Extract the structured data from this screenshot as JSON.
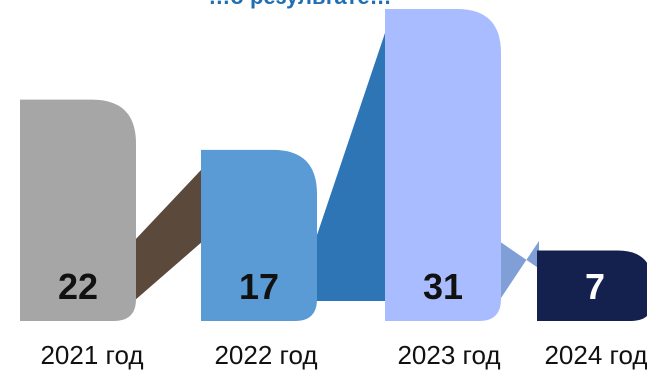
{
  "chart_data": {
    "type": "bar",
    "title": "…о результате…",
    "categories": [
      "2021 год",
      "2022 год",
      "2023 год",
      "2024 год"
    ],
    "values": [
      22,
      17,
      31,
      7
    ],
    "ylim": [
      0,
      31
    ],
    "colors": [
      "#a6a6a6",
      "#5b9bd5",
      "#a9bcff",
      "#14214e"
    ],
    "connector_colors": [
      "#5b4a3c",
      "#2e75b6",
      "#7f9fd6"
    ],
    "label_colors": [
      "#111111",
      "#111111",
      "#111111",
      "#ffffff"
    ],
    "xlabel": "",
    "ylabel": "",
    "grid": false,
    "legend": "none"
  }
}
